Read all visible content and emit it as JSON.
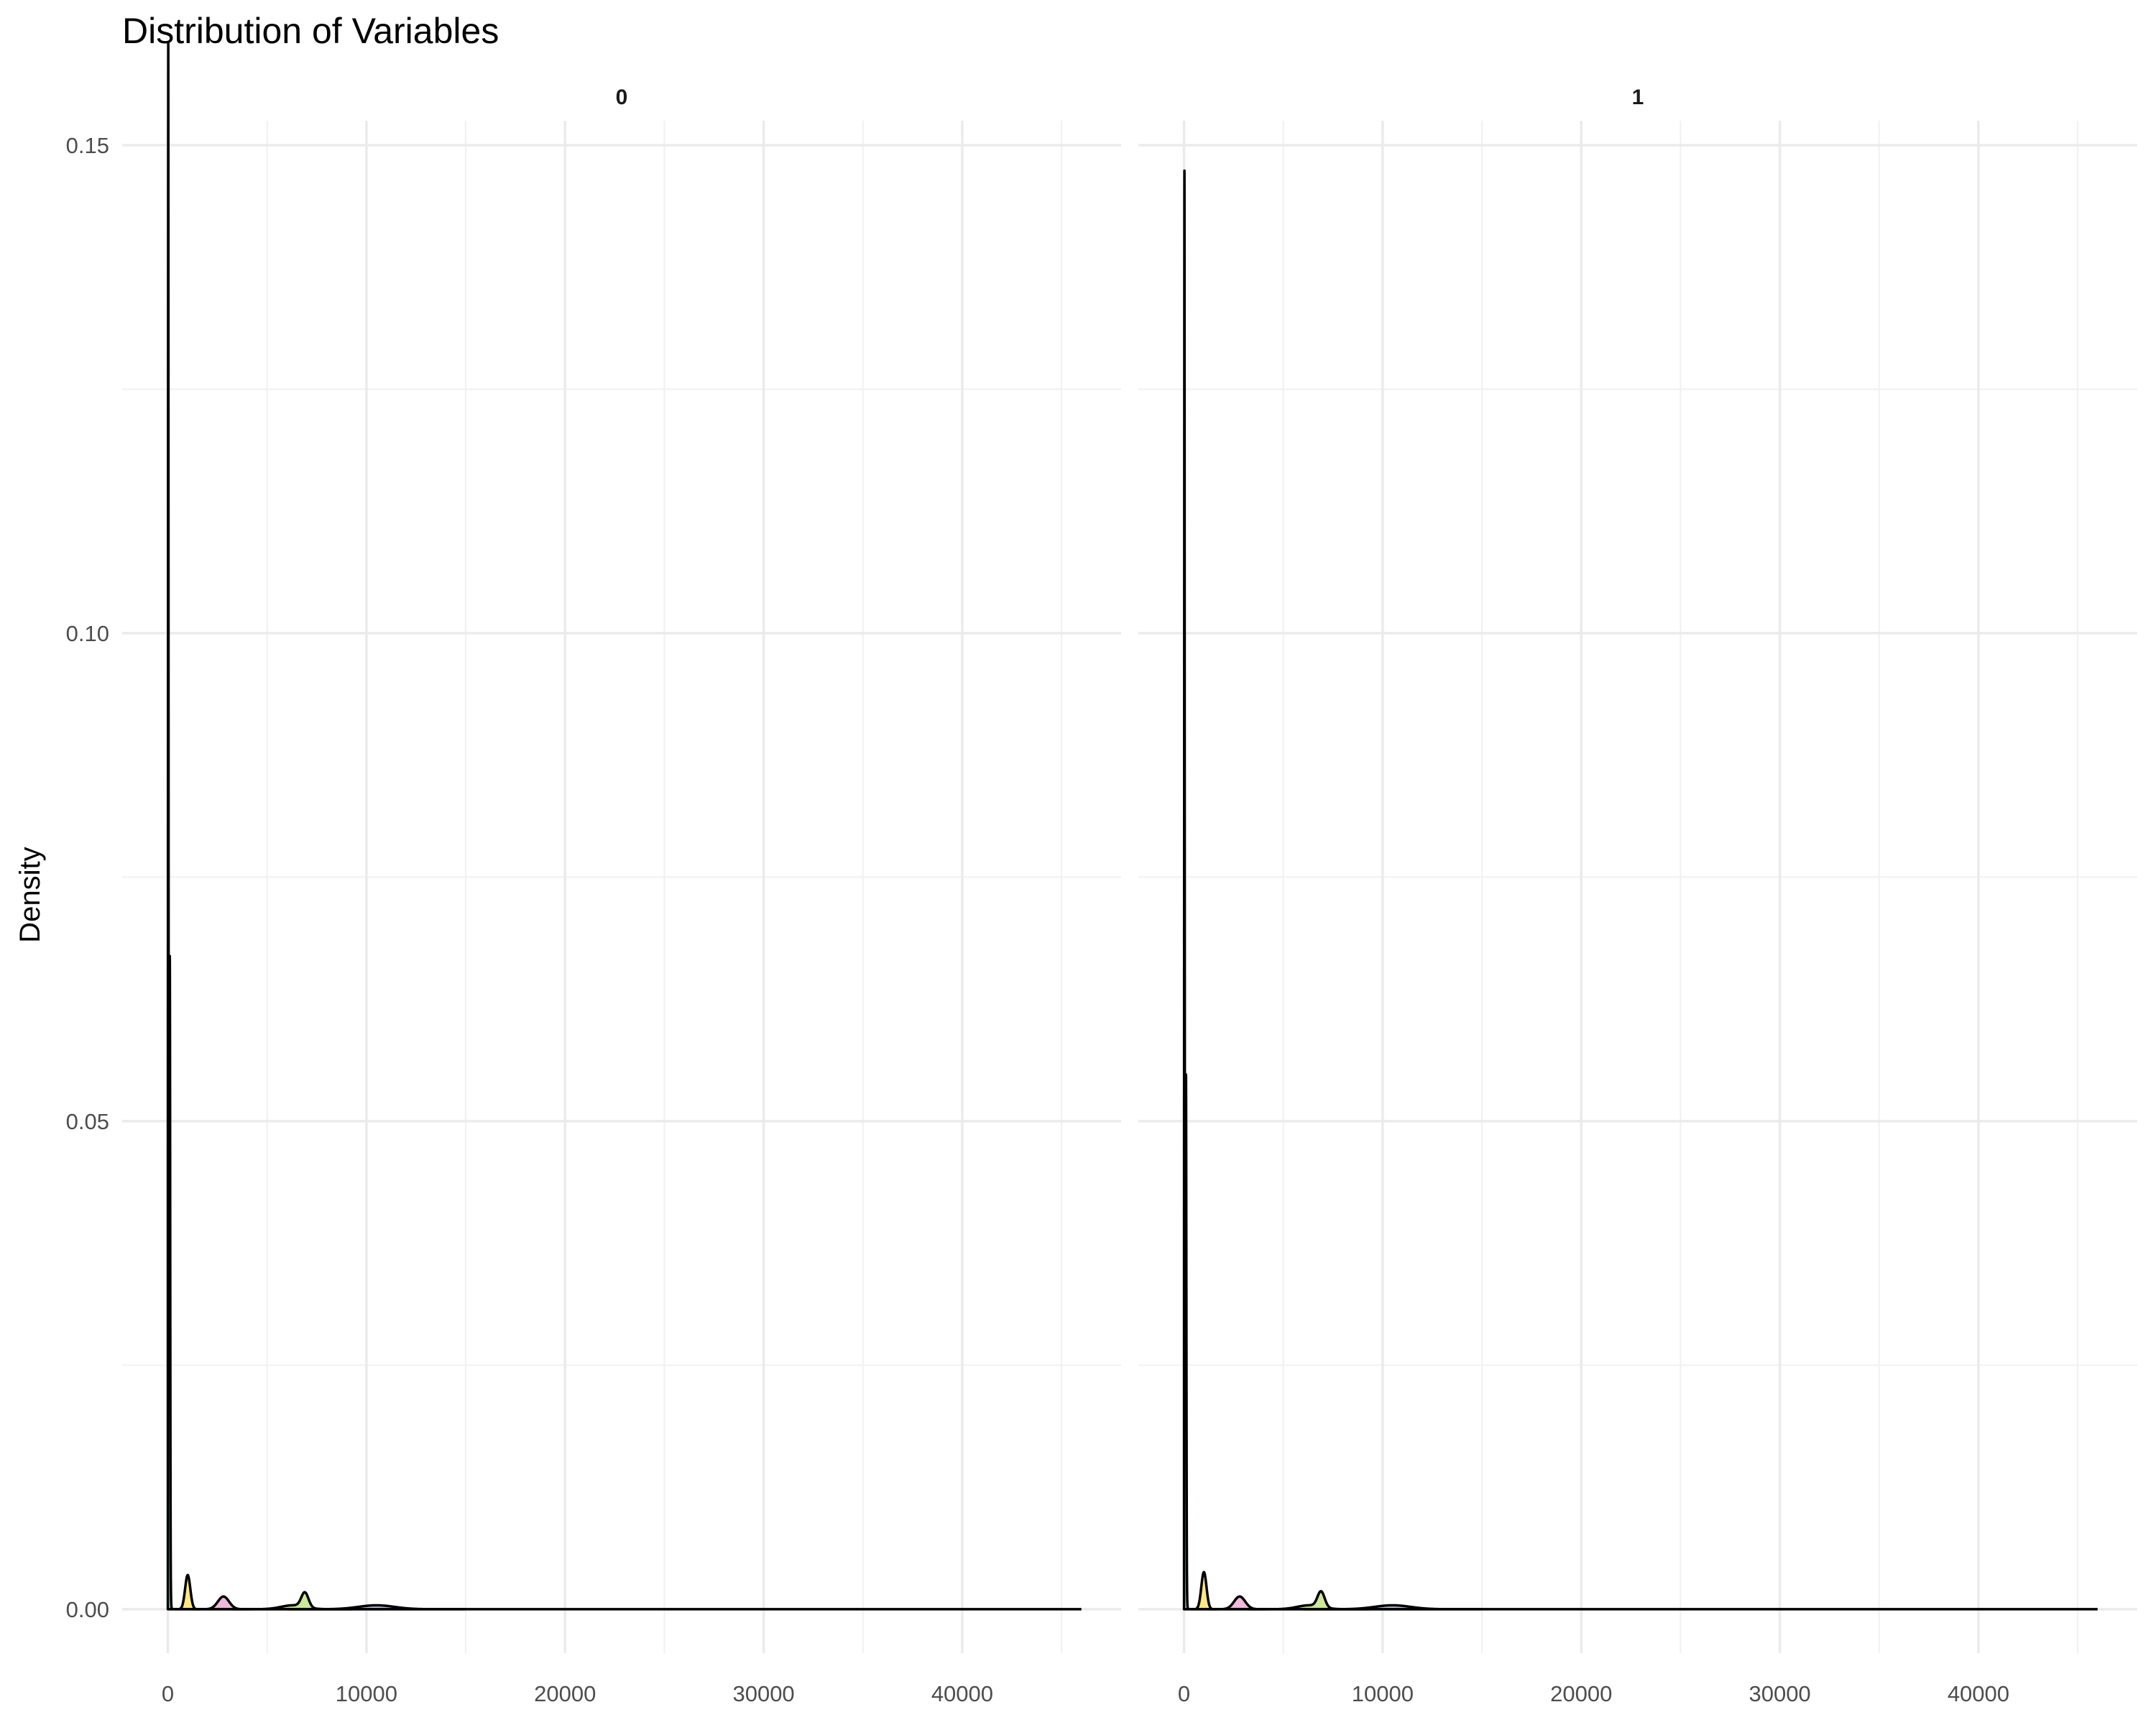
{
  "chart_data": {
    "type": "area",
    "title": "Distribution of Variables",
    "xlabel": "",
    "ylabel": "Density",
    "xlim": [
      -2300,
      48000
    ],
    "ylim": [
      -0.0045,
      0.1525
    ],
    "x_ticks": [
      0,
      10000,
      20000,
      30000,
      40000
    ],
    "x_tick_labels": [
      "0",
      "10000",
      "20000",
      "30000",
      "40000"
    ],
    "y_ticks": [
      0,
      0.05,
      0.1,
      0.15
    ],
    "y_tick_labels": [
      "0.00",
      "0.05",
      "0.10",
      "0.15"
    ],
    "grid": true,
    "legend": "none",
    "facets": [
      {
        "label": "0",
        "series": [
          {
            "color": "#66c2a5",
            "peaks": [
              {
                "x": 20,
                "y": 0.144,
                "sd": 12
              },
              {
                "x": 100,
                "y": 0.05,
                "sd": 18
              },
              {
                "x": 60,
                "y": 0.027,
                "sd": 40
              }
            ]
          },
          {
            "color": "#ffd92f",
            "peaks": [
              {
                "x": 1000,
                "y": 0.0035,
                "sd": 130
              }
            ]
          },
          {
            "color": "#e78ac3",
            "peaks": [
              {
                "x": 2800,
                "y": 0.0013,
                "sd": 280
              }
            ]
          },
          {
            "color": "#a6d854",
            "peaks": [
              {
                "x": 6900,
                "y": 0.0015,
                "sd": 180
              },
              {
                "x": 6300,
                "y": 0.0004,
                "sd": 600
              }
            ]
          },
          {
            "color": "#8da0cb",
            "peaks": [
              {
                "x": 10500,
                "y": 0.0004,
                "sd": 900
              }
            ]
          }
        ]
      },
      {
        "label": "1",
        "series": [
          {
            "color": "#66c2a5",
            "peaks": [
              {
                "x": 20,
                "y": 0.134,
                "sd": 12
              },
              {
                "x": 100,
                "y": 0.041,
                "sd": 18
              },
              {
                "x": 60,
                "y": 0.022,
                "sd": 40
              }
            ]
          },
          {
            "color": "#ffd92f",
            "peaks": [
              {
                "x": 1000,
                "y": 0.0038,
                "sd": 130
              }
            ]
          },
          {
            "color": "#e78ac3",
            "peaks": [
              {
                "x": 2800,
                "y": 0.0013,
                "sd": 280
              }
            ]
          },
          {
            "color": "#a6d854",
            "peaks": [
              {
                "x": 6900,
                "y": 0.0016,
                "sd": 180
              },
              {
                "x": 6300,
                "y": 0.0004,
                "sd": 600
              }
            ]
          },
          {
            "color": "#8da0cb",
            "peaks": [
              {
                "x": 10500,
                "y": 0.0004,
                "sd": 900
              }
            ]
          }
        ]
      }
    ],
    "x_max_data": 46000
  }
}
